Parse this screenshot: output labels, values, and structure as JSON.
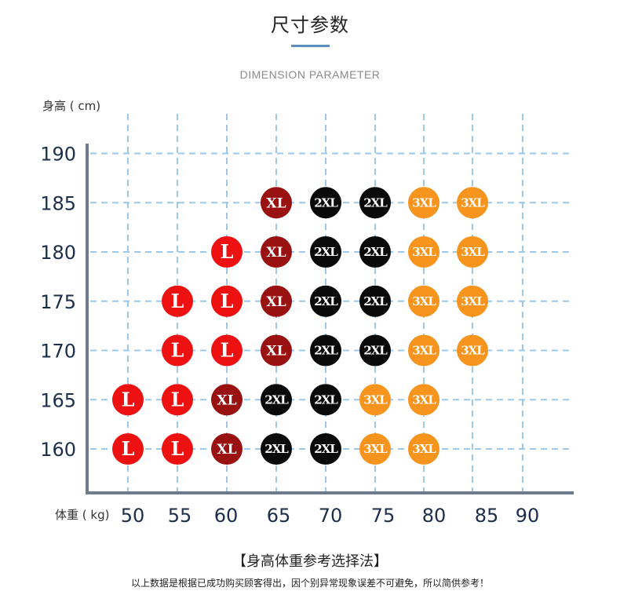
{
  "title": "尺寸参数",
  "subtitle": "DIMENSION PARAMETER",
  "footer": {
    "rule_title": "【身高体重参考选择法】",
    "note": "以上数据是根据已成功购买顾客得出，因个别异常现象误差不可避免，所以简供参考！"
  },
  "colors": {
    "L": "#ee1111",
    "XL": "#991111",
    "2XL": "#0a0a0a",
    "3XL": "#f7941d",
    "grid": "#9cc8ec",
    "axis": "#6d7b8c"
  },
  "chart_data": {
    "type": "scatter",
    "xlabel": "体重 ( kg)",
    "ylabel": "身高 ( cm)",
    "x_ticks": [
      50,
      55,
      60,
      65,
      70,
      75,
      80,
      85,
      90
    ],
    "y_ticks": [
      160,
      165,
      170,
      175,
      180,
      185,
      190
    ],
    "points": [
      {
        "weight": 50,
        "height": 160,
        "size": "L"
      },
      {
        "weight": 55,
        "height": 160,
        "size": "L"
      },
      {
        "weight": 60,
        "height": 160,
        "size": "XL"
      },
      {
        "weight": 65,
        "height": 160,
        "size": "2XL"
      },
      {
        "weight": 70,
        "height": 160,
        "size": "2XL"
      },
      {
        "weight": 75,
        "height": 160,
        "size": "3XL"
      },
      {
        "weight": 80,
        "height": 160,
        "size": "3XL"
      },
      {
        "weight": 50,
        "height": 165,
        "size": "L"
      },
      {
        "weight": 55,
        "height": 165,
        "size": "L"
      },
      {
        "weight": 60,
        "height": 165,
        "size": "XL"
      },
      {
        "weight": 65,
        "height": 165,
        "size": "2XL"
      },
      {
        "weight": 70,
        "height": 165,
        "size": "2XL"
      },
      {
        "weight": 75,
        "height": 165,
        "size": "3XL"
      },
      {
        "weight": 80,
        "height": 165,
        "size": "3XL"
      },
      {
        "weight": 55,
        "height": 170,
        "size": "L"
      },
      {
        "weight": 60,
        "height": 170,
        "size": "L"
      },
      {
        "weight": 65,
        "height": 170,
        "size": "XL"
      },
      {
        "weight": 70,
        "height": 170,
        "size": "2XL"
      },
      {
        "weight": 75,
        "height": 170,
        "size": "2XL"
      },
      {
        "weight": 80,
        "height": 170,
        "size": "3XL"
      },
      {
        "weight": 85,
        "height": 170,
        "size": "3XL"
      },
      {
        "weight": 55,
        "height": 175,
        "size": "L"
      },
      {
        "weight": 60,
        "height": 175,
        "size": "L"
      },
      {
        "weight": 65,
        "height": 175,
        "size": "XL"
      },
      {
        "weight": 70,
        "height": 175,
        "size": "2XL"
      },
      {
        "weight": 75,
        "height": 175,
        "size": "2XL"
      },
      {
        "weight": 80,
        "height": 175,
        "size": "3XL"
      },
      {
        "weight": 85,
        "height": 175,
        "size": "3XL"
      },
      {
        "weight": 60,
        "height": 180,
        "size": "L"
      },
      {
        "weight": 65,
        "height": 180,
        "size": "XL"
      },
      {
        "weight": 70,
        "height": 180,
        "size": "2XL"
      },
      {
        "weight": 75,
        "height": 180,
        "size": "2XL"
      },
      {
        "weight": 80,
        "height": 180,
        "size": "3XL"
      },
      {
        "weight": 85,
        "height": 180,
        "size": "3XL"
      },
      {
        "weight": 65,
        "height": 185,
        "size": "XL"
      },
      {
        "weight": 70,
        "height": 185,
        "size": "2XL"
      },
      {
        "weight": 75,
        "height": 185,
        "size": "2XL"
      },
      {
        "weight": 80,
        "height": 185,
        "size": "3XL"
      },
      {
        "weight": 85,
        "height": 185,
        "size": "3XL"
      }
    ]
  }
}
